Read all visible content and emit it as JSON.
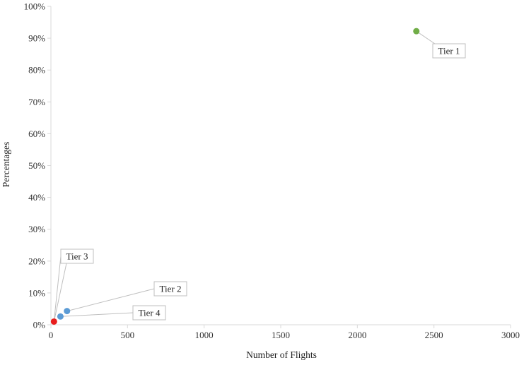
{
  "chart_data": {
    "type": "scatter",
    "title": "",
    "xlabel": "Number of Flights",
    "ylabel": "Percentages",
    "xlim": [
      0,
      3000
    ],
    "ylim": [
      0,
      100
    ],
    "x_ticks": [
      0,
      500,
      1000,
      1500,
      2000,
      2500,
      3000
    ],
    "y_ticks": [
      0,
      10,
      20,
      30,
      40,
      50,
      60,
      70,
      80,
      90,
      100
    ],
    "x_tick_labels": [
      "0",
      "500",
      "1000",
      "1500",
      "2000",
      "2500",
      "3000"
    ],
    "y_tick_labels": [
      "0%",
      "10%",
      "20%",
      "30%",
      "40%",
      "50%",
      "60%",
      "70%",
      "80%",
      "90%",
      "100%"
    ],
    "grid": false,
    "legend": "none",
    "points": [
      {
        "label": "Tier 1",
        "x": 2385,
        "y": 92.2,
        "color": "#70ad47"
      },
      {
        "label": "Tier 2",
        "x": 105,
        "y": 4.3,
        "color": "#5b9bd5"
      },
      {
        "label": "Tier 4",
        "x": 62,
        "y": 2.6,
        "color": "#5b9bd5"
      },
      {
        "label": "Tier 3",
        "x": 20,
        "y": 1.0,
        "color": "#e81c1c"
      }
    ],
    "axis_color": "#d9d9d9",
    "leader_color": "#bfbfbf"
  }
}
